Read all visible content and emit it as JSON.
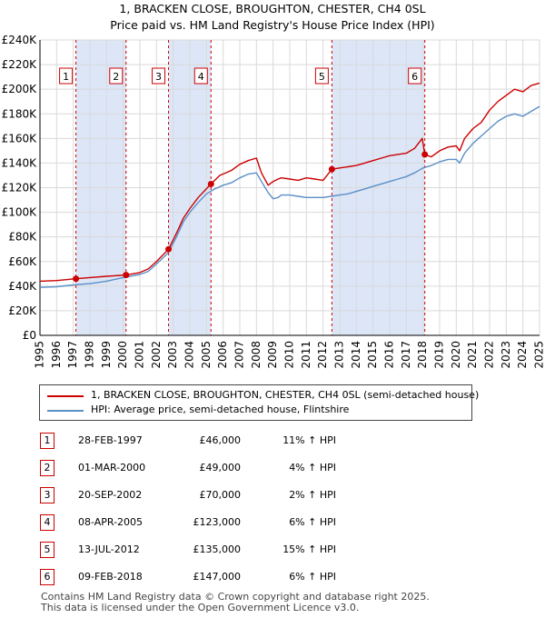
{
  "title_line1": "1, BRACKEN CLOSE, BROUGHTON, CHESTER, CH4 0SL",
  "title_line2": "Price paid vs. HM Land Registry's House Price Index (HPI)",
  "chart_data": {
    "type": "line",
    "xlim": [
      1995,
      2025
    ],
    "ylim": [
      0,
      240000
    ],
    "y_ticks": [
      0,
      20000,
      40000,
      60000,
      80000,
      100000,
      120000,
      140000,
      160000,
      180000,
      200000,
      220000,
      240000
    ],
    "y_tick_labels": [
      "£0",
      "£20K",
      "£40K",
      "£60K",
      "£80K",
      "£100K",
      "£120K",
      "£140K",
      "£160K",
      "£180K",
      "£200K",
      "£220K",
      "£240K"
    ],
    "x_ticks": [
      1995,
      1996,
      1997,
      1998,
      1999,
      2000,
      2001,
      2002,
      2003,
      2004,
      2005,
      2006,
      2007,
      2008,
      2009,
      2010,
      2011,
      2012,
      2013,
      2014,
      2015,
      2016,
      2017,
      2018,
      2019,
      2020,
      2021,
      2022,
      2023,
      2024,
      2025
    ],
    "x_tick_labels": [
      "1995",
      "1996",
      "1997",
      "1998",
      "1999",
      "2000",
      "2001",
      "2002",
      "2003",
      "2004",
      "2005",
      "2006",
      "2007",
      "2008",
      "2009",
      "2010",
      "2011",
      "2012",
      "2013",
      "2014",
      "2015",
      "2016",
      "2017",
      "2018",
      "2019",
      "2020",
      "2021",
      "2022",
      "2023",
      "2024",
      "2025"
    ],
    "grid": true,
    "series": [
      {
        "name": "1, BRACKEN CLOSE, BROUGHTON, CHESTER, CH4 0SL (semi-detached house)",
        "color": "#cc0000",
        "x": [
          1995.0,
          1996.0,
          1997.16,
          1998.0,
          1999.0,
          2000.17,
          2001.0,
          2001.5,
          2002.0,
          2002.72,
          2003.2,
          2003.6,
          2004.0,
          2004.5,
          2005.27,
          2005.8,
          2006.5,
          2007.0,
          2007.5,
          2008.0,
          2008.3,
          2008.7,
          2009.0,
          2009.3,
          2009.5,
          2010.0,
          2010.5,
          2011.0,
          2011.5,
          2012.0,
          2012.53,
          2013.0,
          2013.5,
          2014.0,
          2014.5,
          2015.0,
          2015.5,
          2016.0,
          2016.5,
          2017.0,
          2017.5,
          2017.95,
          2018.11,
          2018.5,
          2019.0,
          2019.5,
          2020.0,
          2020.2,
          2020.5,
          2021.0,
          2021.5,
          2022.0,
          2022.5,
          2023.0,
          2023.5,
          2024.0,
          2024.5,
          2025.0
        ],
        "y": [
          44000,
          44500,
          46000,
          47000,
          48000,
          49000,
          51000,
          54000,
          60000,
          70000,
          83000,
          95000,
          103000,
          112000,
          123000,
          130000,
          134000,
          139000,
          142000,
          144000,
          132000,
          122000,
          125000,
          127000,
          128000,
          127000,
          126000,
          128000,
          127000,
          126000,
          135000,
          136000,
          137000,
          138000,
          140000,
          142000,
          144000,
          146000,
          147000,
          148000,
          152000,
          160000,
          147000,
          145000,
          150000,
          153000,
          154000,
          150000,
          160000,
          168000,
          173000,
          183000,
          190000,
          195000,
          200000,
          198000,
          203000,
          205000
        ]
      },
      {
        "name": "HPI: Average price, semi-detached house, Flintshire",
        "color": "#5b8fc7",
        "x": [
          1995.0,
          1996.0,
          1997.0,
          1998.0,
          1999.0,
          2000.0,
          2001.0,
          2001.5,
          2002.0,
          2002.7,
          2003.2,
          2003.6,
          2004.0,
          2004.5,
          2005.0,
          2005.5,
          2006.0,
          2006.5,
          2007.0,
          2007.5,
          2008.0,
          2008.3,
          2008.7,
          2009.0,
          2009.3,
          2009.5,
          2010.0,
          2010.5,
          2011.0,
          2011.5,
          2012.0,
          2012.5,
          2013.0,
          2013.5,
          2014.0,
          2014.5,
          2015.0,
          2015.5,
          2016.0,
          2016.5,
          2017.0,
          2017.5,
          2018.0,
          2018.5,
          2019.0,
          2019.5,
          2020.0,
          2020.2,
          2020.5,
          2021.0,
          2021.5,
          2022.0,
          2022.5,
          2023.0,
          2023.5,
          2024.0,
          2024.5,
          2025.0
        ],
        "y": [
          39000,
          39500,
          41000,
          42000,
          44000,
          47000,
          49500,
          52000,
          58000,
          67000,
          80000,
          92000,
          100000,
          108000,
          115000,
          119000,
          122000,
          124000,
          128000,
          131000,
          132000,
          125000,
          116000,
          111000,
          112000,
          114000,
          114000,
          113000,
          112000,
          112000,
          112000,
          113000,
          114000,
          115000,
          117000,
          119000,
          121000,
          123000,
          125000,
          127000,
          129000,
          132000,
          136000,
          138000,
          141000,
          143000,
          143000,
          140000,
          148000,
          156000,
          162000,
          168000,
          174000,
          178000,
          180000,
          178000,
          182000,
          186000
        ]
      }
    ],
    "sales": [
      {
        "n": "1",
        "x": 1997.16,
        "y": 46000
      },
      {
        "n": "2",
        "x": 2000.17,
        "y": 49000
      },
      {
        "n": "3",
        "x": 2002.72,
        "y": 70000
      },
      {
        "n": "4",
        "x": 2005.27,
        "y": 123000
      },
      {
        "n": "5",
        "x": 2012.53,
        "y": 135000
      },
      {
        "n": "6",
        "x": 2018.11,
        "y": 147000
      }
    ],
    "shaded_periods": [
      [
        1997.16,
        2000.17
      ],
      [
        2002.72,
        2005.27
      ],
      [
        2012.53,
        2018.11
      ]
    ],
    "shade_color": "#dce6f7"
  },
  "legend": {
    "property_label": "1, BRACKEN CLOSE, BROUGHTON, CHESTER, CH4 0SL (semi-detached house)",
    "hpi_label": "HPI: Average price, semi-detached house, Flintshire",
    "property_color": "#cc0000",
    "hpi_color": "#5b8fc7"
  },
  "sales_table": [
    {
      "n": "1",
      "date": "28-FEB-1997",
      "price": "£46,000",
      "hpi": "11% ↑ HPI"
    },
    {
      "n": "2",
      "date": "01-MAR-2000",
      "price": "£49,000",
      "hpi": "4% ↑ HPI"
    },
    {
      "n": "3",
      "date": "20-SEP-2002",
      "price": "£70,000",
      "hpi": "2% ↑ HPI"
    },
    {
      "n": "4",
      "date": "08-APR-2005",
      "price": "£123,000",
      "hpi": "6% ↑ HPI"
    },
    {
      "n": "5",
      "date": "13-JUL-2012",
      "price": "£135,000",
      "hpi": "15% ↑ HPI"
    },
    {
      "n": "6",
      "date": "09-FEB-2018",
      "price": "£147,000",
      "hpi": "6% ↑ HPI"
    }
  ],
  "footer_line1": "Contains HM Land Registry data © Crown copyright and database right 2025.",
  "footer_line2": "This data is licensed under the Open Government Licence v3.0."
}
